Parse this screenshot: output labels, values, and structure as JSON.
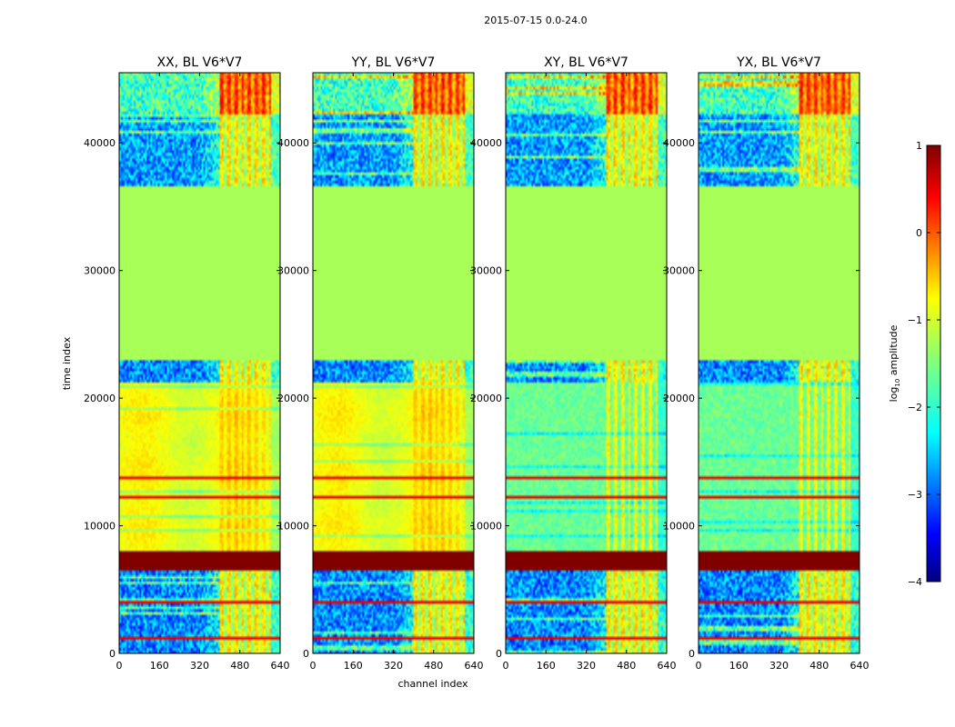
{
  "suptitle": "2015-07-15 0.0-24.0",
  "chart_data": {
    "type": "heatmap",
    "panels": [
      {
        "title": "XX, BL V6*V7",
        "pol": "XX"
      },
      {
        "title": "YY, BL V6*V7",
        "pol": "YY"
      },
      {
        "title": "XY, BL V6*V7",
        "pol": "XY"
      },
      {
        "title": "YX, BL V6*V7",
        "pol": "YX"
      }
    ],
    "xlabel": "channel index",
    "ylabel": "time index",
    "xlim": [
      0,
      640
    ],
    "ylim": [
      0,
      45500
    ],
    "xticks": [
      0,
      160,
      320,
      480,
      640
    ],
    "yticks": [
      0,
      10000,
      20000,
      30000,
      40000
    ],
    "xtick_labels": [
      "0",
      "160",
      "320",
      "480",
      "640"
    ],
    "ytick_labels": [
      "0",
      "10000",
      "20000",
      "30000",
      "40000"
    ],
    "colorbar": {
      "label": "log10 amplitude",
      "label_main": "log",
      "label_sub": "10",
      "label_rest": " amplitude",
      "range": [
        -4,
        1
      ],
      "ticks": [
        1,
        0,
        -1,
        -2,
        -3,
        -4
      ],
      "tick_labels": [
        "1",
        "0",
        "−1",
        "−2",
        "−3",
        "−4"
      ],
      "colormap": "jet"
    },
    "time_segments_approx": [
      {
        "t0": 0,
        "t1": 6500,
        "region": "noisy low-amplitude, bright channel stripes",
        "lowch": -2.7,
        "highch": -0.6
      },
      {
        "t0": 6500,
        "t1": 8000,
        "region": "saturated band",
        "value": 1.0
      },
      {
        "t0": 8000,
        "t1": 21300,
        "region": "smooth moderate",
        "copol": -1.0,
        "crosspol": -1.6
      },
      {
        "t0": 21300,
        "t1": 23000,
        "region": "noisy",
        "lowch": -2.8,
        "highch": -0.7
      },
      {
        "t0": 23000,
        "t1": 36600,
        "region": "flagged constant",
        "value": -1.3
      },
      {
        "t0": 36600,
        "t1": 42200,
        "region": "noisy with stripes",
        "lowch": -2.6,
        "highch": -0.7
      },
      {
        "t0": 42200,
        "t1": 45500,
        "region": "bright banded",
        "lowch": -1.8,
        "highch": 0.2
      }
    ]
  },
  "colors": {
    "jet_stops": [
      "#00007f",
      "#0000ff",
      "#007fff",
      "#00ffff",
      "#7fff7f",
      "#ffff00",
      "#ff7f00",
      "#ff0000",
      "#7f0000"
    ]
  }
}
